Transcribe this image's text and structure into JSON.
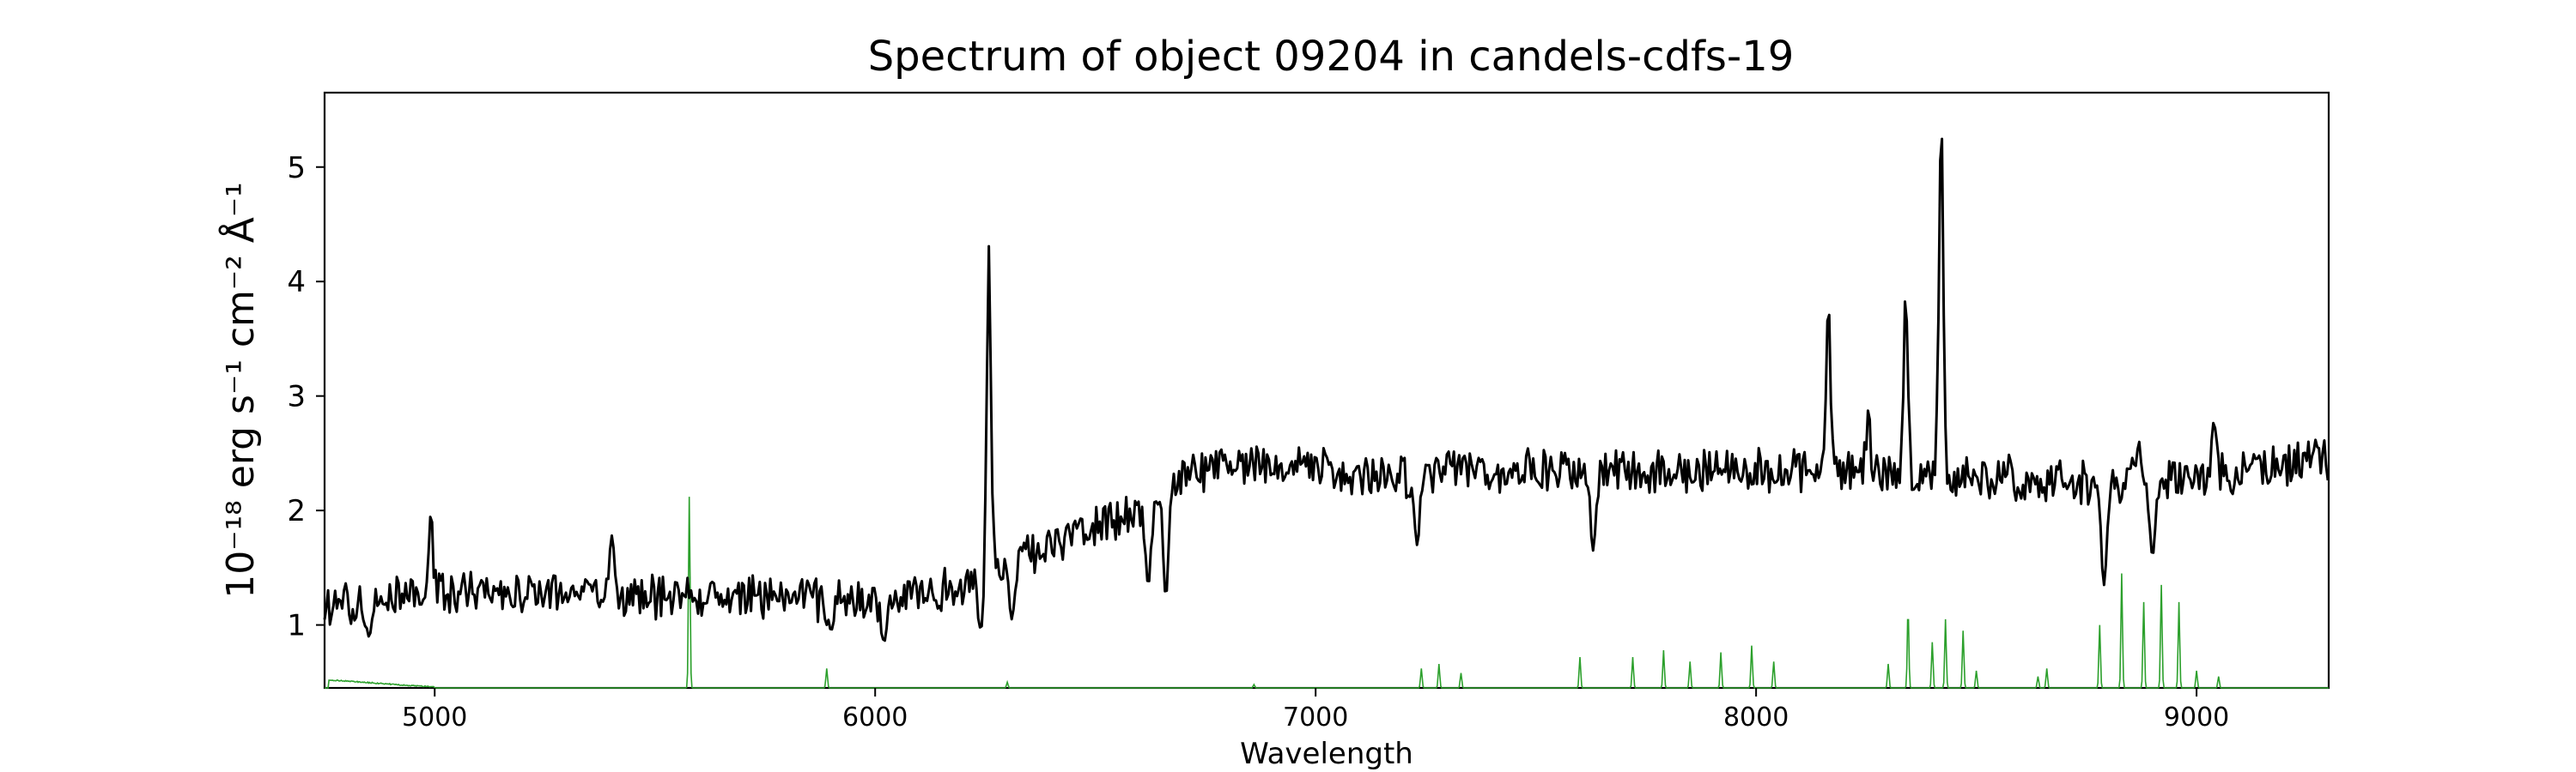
{
  "chart_data": {
    "type": "line",
    "title": "Spectrum of object 09204 in candels-cdfs-19",
    "xlabel": "Wavelength",
    "ylabel": "10⁻¹⁸ erg s⁻¹ cm⁻² Å⁻¹",
    "xlim": [
      4750,
      9300
    ],
    "ylim": [
      0.45,
      5.65
    ],
    "x_ticks": [
      5000,
      6000,
      7000,
      8000,
      9000
    ],
    "y_ticks": [
      1,
      2,
      3,
      4,
      5
    ],
    "grid": false,
    "series": [
      {
        "color": "#000000",
        "anchors": [
          [
            4750,
            1.15
          ],
          [
            5000,
            1.3
          ],
          [
            5500,
            1.25
          ],
          [
            6000,
            1.2
          ],
          [
            6200,
            1.35
          ],
          [
            6400,
            1.7
          ],
          [
            6600,
            2.0
          ],
          [
            6700,
            2.3
          ],
          [
            6800,
            2.4
          ],
          [
            7000,
            2.35
          ],
          [
            7200,
            2.3
          ],
          [
            7500,
            2.35
          ],
          [
            8000,
            2.35
          ],
          [
            8200,
            2.35
          ],
          [
            8500,
            2.3
          ],
          [
            8700,
            2.25
          ],
          [
            9000,
            2.3
          ],
          [
            9300,
            2.45
          ]
        ],
        "noise": 0.17,
        "dips": [
          [
            4850,
            0.9
          ],
          [
            5900,
            0.95
          ],
          [
            6020,
            0.85
          ],
          [
            6240,
            0.95
          ],
          [
            6310,
            1.05
          ],
          [
            6620,
            1.35
          ],
          [
            6660,
            1.25
          ],
          [
            7230,
            1.7
          ],
          [
            7630,
            1.65
          ],
          [
            8790,
            1.35
          ],
          [
            8900,
            1.6
          ]
        ],
        "peaks": [
          [
            4990,
            2.0
          ],
          [
            5400,
            1.85
          ],
          [
            6258,
            4.15
          ],
          [
            8164,
            3.92
          ],
          [
            8254,
            2.75
          ],
          [
            8340,
            3.85
          ],
          [
            8420,
            5.42
          ],
          [
            8870,
            2.7
          ],
          [
            9040,
            2.85
          ]
        ]
      },
      {
        "color": "#2ca02c",
        "baseline": 0.45,
        "band": [
          4760,
          5000,
          0.52
        ],
        "lines": [
          [
            5578,
            2.12
          ],
          [
            5890,
            0.62
          ],
          [
            6300,
            0.5
          ],
          [
            6860,
            0.48
          ],
          [
            7240,
            0.62
          ],
          [
            7280,
            0.66
          ],
          [
            7330,
            0.58
          ],
          [
            7600,
            0.72
          ],
          [
            7720,
            0.72
          ],
          [
            7790,
            0.78
          ],
          [
            7850,
            0.68
          ],
          [
            7920,
            0.76
          ],
          [
            7990,
            0.82
          ],
          [
            8040,
            0.68
          ],
          [
            8300,
            0.66
          ],
          [
            8345,
            1.15
          ],
          [
            8400,
            0.85
          ],
          [
            8430,
            1.05
          ],
          [
            8470,
            0.95
          ],
          [
            8500,
            0.6
          ],
          [
            8640,
            0.55
          ],
          [
            8660,
            0.62
          ],
          [
            8780,
            1.0
          ],
          [
            8830,
            1.45
          ],
          [
            8880,
            1.2
          ],
          [
            8920,
            1.35
          ],
          [
            8960,
            1.2
          ],
          [
            9000,
            0.6
          ],
          [
            9050,
            0.55
          ]
        ]
      }
    ]
  }
}
